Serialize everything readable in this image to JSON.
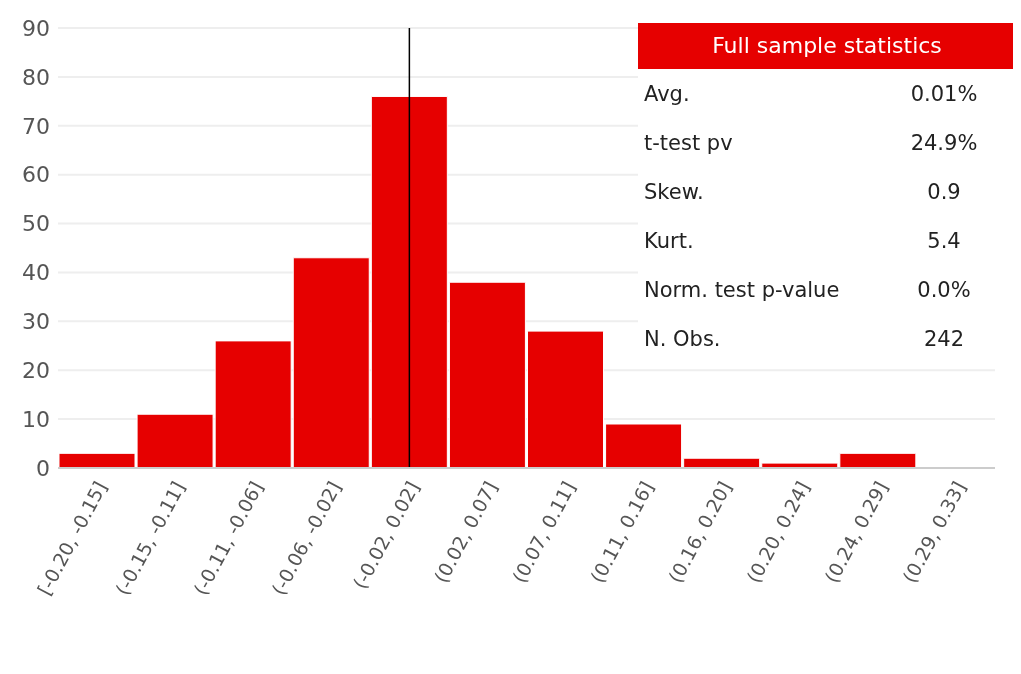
{
  "chart_data": {
    "type": "bar",
    "categories": [
      "[-0.20, -0.15]",
      "(-0.15, -0.11]",
      "(-0.11, -0.06]",
      "(-0.06, -0.02]",
      "(-0.02, 0.02]",
      "(0.02, 0.07]",
      "(0.07, 0.11]",
      "(0.11, 0.16]",
      "(0.16, 0.20]",
      "(0.20, 0.24]",
      "(0.24, 0.29]",
      "(0.29, 0.33]"
    ],
    "values": [
      3,
      11,
      26,
      43,
      76,
      38,
      28,
      9,
      2,
      1,
      3,
      0
    ],
    "color": "#e60000",
    "ylim": [
      0,
      90
    ],
    "yticks": [
      0,
      10,
      20,
      30,
      40,
      50,
      60,
      70,
      80,
      90
    ],
    "grid": "y",
    "ref_lines": [
      {
        "axis": "x",
        "value": "(-0.02, 0.02]",
        "color": "#000000"
      }
    ],
    "annotations": [
      "Full sample statistics",
      "Avg.",
      "0.01%",
      "t-test pv",
      "24.9%",
      "Skew.",
      "0.9",
      "Kurt.",
      "5.4",
      "Norm. test p-value",
      "0.0%",
      "N. Obs.",
      "242"
    ]
  }
}
